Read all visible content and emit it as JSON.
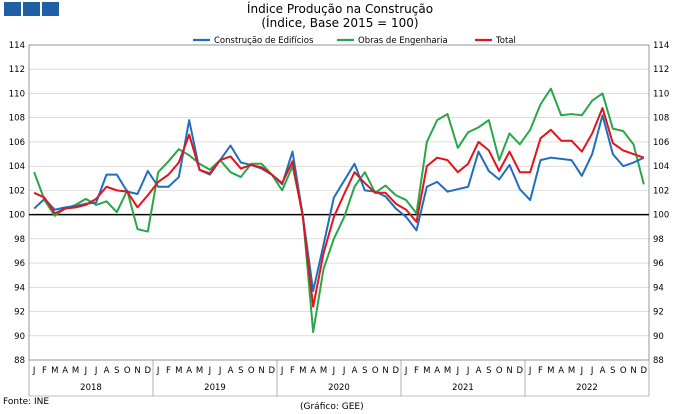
{
  "header": {
    "logo_name": "blue-square-logo",
    "title": "Índice Produção na Construção",
    "subtitle": "(Índice, Base 2015 = 100)"
  },
  "footer": {
    "source": "Fonte: INE",
    "credit": "(Gráfico: GEE)"
  },
  "colors": {
    "construcao": "#1f6fbf",
    "obras": "#2aa64a",
    "total": "#e3141b",
    "baseline": "#000000",
    "grid": "#c8c8c8",
    "logo": "#1f5fa6"
  },
  "chart_data": {
    "type": "line",
    "title": "Índice Produção na Construção",
    "subtitle": "(Índice, Base 2015 = 100)",
    "ylim": [
      88,
      114
    ],
    "ytick_step": 2,
    "grid": true,
    "legend_position": "top-center",
    "reference_line": 100,
    "month_labels": [
      "J",
      "F",
      "M",
      "A",
      "M",
      "J",
      "J",
      "A",
      "S",
      "O",
      "N",
      "D"
    ],
    "years": [
      "2018",
      "2019",
      "2020",
      "2021",
      "2022"
    ],
    "series": [
      {
        "name": "Construção de Edifícios",
        "color": "#1f6fbf",
        "values": [
          100.5,
          101.3,
          100.4,
          100.6,
          100.7,
          100.9,
          101.0,
          103.3,
          103.3,
          101.9,
          101.7,
          103.6,
          102.3,
          102.3,
          103.1,
          107.8,
          103.7,
          103.3,
          104.5,
          105.7,
          104.3,
          104.1,
          103.8,
          103.3,
          102.5,
          105.2,
          99.9,
          93.7,
          97.5,
          101.4,
          102.8,
          104.2,
          102.0,
          101.9,
          101.5,
          100.5,
          99.8,
          98.7,
          102.3,
          102.7,
          101.9,
          102.1,
          102.3,
          105.2,
          103.6,
          102.9,
          104.1,
          102.1,
          101.2,
          104.5,
          104.7,
          104.6,
          104.5,
          103.2,
          105.0,
          108.2,
          105.0,
          104.0,
          104.3,
          104.7
        ]
      },
      {
        "name": "Obras de Engenharia",
        "color": "#2aa64a",
        "values": [
          103.5,
          101.2,
          99.9,
          100.5,
          100.8,
          101.3,
          100.8,
          101.1,
          100.2,
          102.0,
          98.8,
          98.6,
          103.5,
          104.4,
          105.4,
          104.9,
          104.2,
          103.7,
          104.5,
          103.5,
          103.1,
          104.2,
          104.2,
          103.3,
          102.0,
          104.0,
          100.0,
          90.3,
          95.5,
          98.0,
          99.8,
          102.3,
          103.5,
          101.8,
          102.4,
          101.6,
          101.2,
          100.1,
          106.0,
          107.8,
          108.3,
          105.5,
          106.8,
          107.2,
          107.8,
          104.5,
          106.7,
          105.8,
          107.0,
          109.1,
          110.4,
          108.2,
          108.3,
          108.2,
          109.4,
          110.0,
          107.1,
          106.9,
          105.8,
          102.5
        ]
      },
      {
        "name": "Total",
        "color": "#e3141b",
        "values": [
          101.8,
          101.4,
          100.1,
          100.5,
          100.6,
          100.8,
          101.3,
          102.3,
          102.0,
          101.9,
          100.6,
          101.6,
          102.7,
          103.3,
          104.3,
          106.6,
          103.7,
          103.4,
          104.5,
          104.8,
          103.8,
          104.1,
          103.9,
          103.3,
          102.6,
          104.4,
          99.8,
          92.4,
          96.8,
          99.8,
          101.7,
          103.5,
          102.6,
          101.8,
          101.8,
          100.9,
          100.4,
          99.4,
          104.0,
          104.7,
          104.5,
          103.5,
          104.2,
          106.0,
          105.3,
          103.6,
          105.2,
          103.5,
          103.5,
          106.3,
          107.0,
          106.1,
          106.1,
          105.2,
          106.7,
          108.8,
          105.9,
          105.3,
          105.0,
          104.7
        ]
      }
    ]
  }
}
